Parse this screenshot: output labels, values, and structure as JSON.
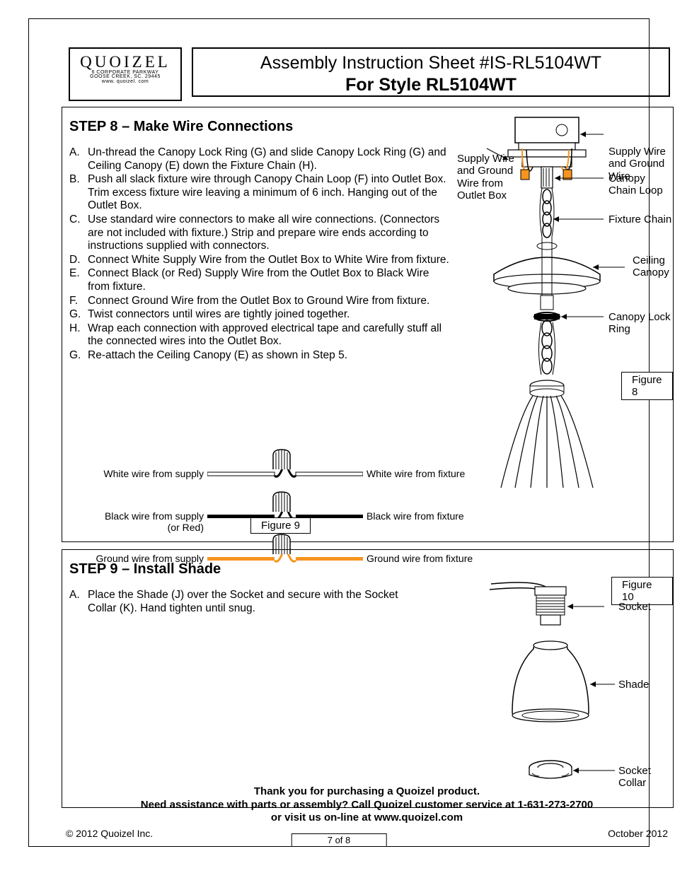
{
  "logo": {
    "brand": "QUOIZEL",
    "addr1": "6 CORPORATE PARKWAY",
    "addr2": "GOOSE CREEK, SC. 29445",
    "url": "www. quoizel. com"
  },
  "title": {
    "line1": "Assembly Instruction Sheet #IS-RL5104WT",
    "line2": "For Style RL5104WT"
  },
  "step8": {
    "heading": "STEP 8 – Make Wire Connections",
    "items": [
      {
        "l": "A.",
        "t": "Un-thread the Canopy Lock Ring (G) and slide Canopy Lock Ring (G) and Ceiling Canopy (E) down the Fixture Chain (H)."
      },
      {
        "l": "B.",
        "t": "Push all slack fixture wire through Canopy Chain Loop (F) into Outlet Box. Trim excess fixture wire leaving a minimum of 6 inch. Hanging out of the Outlet Box."
      },
      {
        "l": "C.",
        "t": "Use standard wire connectors to make all wire connections. (Connectors are not included with fixture.) Strip and prepare wire ends according to instructions supplied with connectors."
      },
      {
        "l": "D.",
        "t": "Connect White Supply Wire from the Outlet Box to White Wire from fixture."
      },
      {
        "l": "E.",
        "t": "Connect Black (or Red) Supply Wire from the Outlet Box to Black Wire from fixture."
      },
      {
        "l": "F.",
        "t": "Connect Ground Wire from the Outlet Box to Ground Wire from fixture."
      },
      {
        "l": "G.",
        "t": "Twist connectors until wires are tightly joined together."
      },
      {
        "l": "H.",
        "t": "Wrap each connection with approved electrical tape and carefully stuff all the connected wires into the Outlet Box."
      },
      {
        "l": "G.",
        "t": "Re-attach the Ceiling Canopy (E) as shown in Step 5."
      }
    ],
    "figure_main": "Figure 8",
    "figure_wires": "Figure 9",
    "wire_rows": [
      {
        "left": "White wire from supply",
        "right": "White wire from fixture",
        "color": "#ffffff",
        "stroke": "#000000"
      },
      {
        "left": "Black wire from supply\n(or Red)",
        "right": "Black wire from fixture",
        "color": "#000000",
        "stroke": "#000000"
      },
      {
        "left": "Ground wire from supply",
        "right": "Ground wire from fixture",
        "color": "#f7941e",
        "stroke": "#f7941e"
      }
    ],
    "callouts": {
      "supply_left": "Supply Wire and Ground Wire from Outlet Box",
      "supply_right": "Supply Wire and Ground Wire",
      "chain_loop": "Canopy Chain Loop",
      "fixture_chain": "Fixture Chain",
      "ceiling_canopy": "Ceiling Canopy",
      "lock_ring": "Canopy Lock Ring"
    }
  },
  "step9": {
    "heading": "STEP 9 – Install Shade",
    "items": [
      {
        "l": "A.",
        "t": "Place the Shade (J) over the Socket and secure with the Socket Collar (K). Hand tighten until snug."
      }
    ],
    "figure": "Figure 10",
    "callouts": {
      "socket": "Socket",
      "shade": "Shade",
      "collar": "Socket Collar"
    }
  },
  "footer": {
    "line1": "Thank you for purchasing a Quoizel product.",
    "line2": "Need assistance with parts or assembly? Call Quoizel customer service at 1-631-273-2700",
    "line3": "or visit us on-line at www.quoizel.com",
    "copyright": "© 2012  Quoizel Inc.",
    "date": "October 2012",
    "page": "7 of 8"
  },
  "colors": {
    "orange": "#f7941e",
    "black": "#000000"
  }
}
